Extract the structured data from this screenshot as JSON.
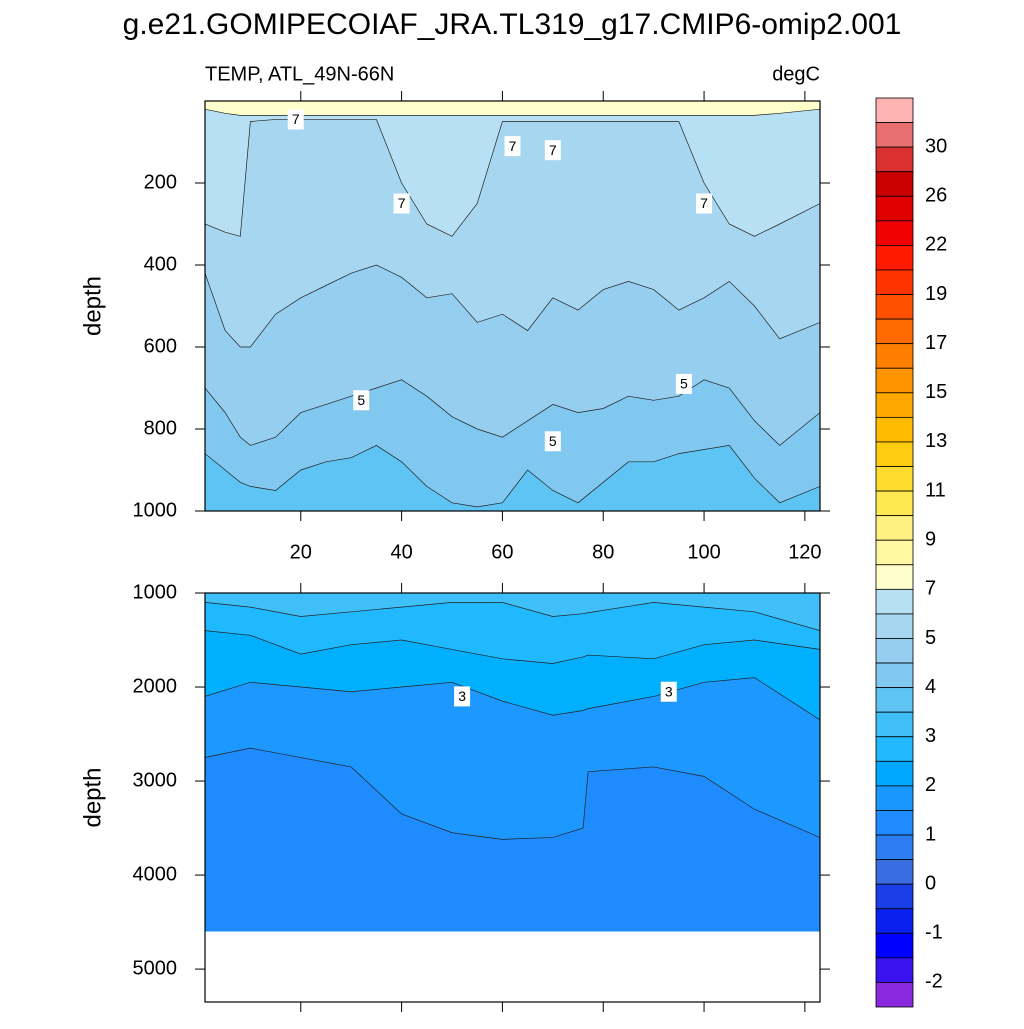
{
  "title": "g.e21.GOMIPECOIAF_JRA.TL319_g17.CMIP6-omip2.001",
  "chart_data": [
    {
      "type": "contour",
      "subtitle_left": "TEMP, ATL_49N-66N",
      "subtitle_right": "degC",
      "ylabel": "depth",
      "x": [
        1,
        5,
        8,
        10,
        15,
        20,
        25,
        30,
        35,
        40,
        45,
        50,
        55,
        60,
        65,
        70,
        75,
        80,
        85,
        90,
        95,
        100,
        105,
        110,
        115,
        123
      ],
      "xlim": [
        1,
        123
      ],
      "ylim": [
        0,
        1000
      ],
      "xticks": [
        20,
        40,
        60,
        80,
        100,
        120
      ],
      "yticks": [
        200,
        400,
        600,
        800,
        1000
      ],
      "show_xtick_labels": true,
      "background": "#ffffcc",
      "contours": [
        {
          "color": "#b8e0f4",
          "depths": [
            20,
            30,
            35,
            35,
            35,
            35,
            35,
            35,
            35,
            35,
            35,
            35,
            35,
            35,
            35,
            35,
            35,
            35,
            35,
            35,
            35,
            35,
            35,
            35,
            30,
            20
          ]
        },
        {
          "color": "#a6d6f0",
          "depths": [
            300,
            320,
            330,
            50,
            45,
            45,
            45,
            45,
            45,
            200,
            300,
            330,
            250,
            50,
            50,
            50,
            50,
            50,
            50,
            50,
            50,
            200,
            300,
            330,
            300,
            250
          ]
        },
        {
          "color": "#96cef0",
          "depths": [
            420,
            560,
            600,
            600,
            520,
            480,
            450,
            420,
            400,
            430,
            480,
            470,
            540,
            520,
            560,
            480,
            510,
            460,
            440,
            460,
            510,
            480,
            440,
            500,
            580,
            540
          ]
        },
        {
          "color": "#80c8f0",
          "depths": [
            700,
            760,
            820,
            840,
            820,
            760,
            740,
            720,
            700,
            680,
            720,
            770,
            800,
            820,
            780,
            740,
            760,
            750,
            720,
            730,
            720,
            680,
            700,
            780,
            840,
            760
          ]
        },
        {
          "color": "#5ec4f4",
          "depths": [
            860,
            900,
            930,
            940,
            950,
            900,
            880,
            870,
            840,
            880,
            940,
            980,
            990,
            980,
            900,
            950,
            980,
            930,
            880,
            880,
            860,
            850,
            840,
            920,
            980,
            940
          ]
        }
      ],
      "contour_labels": [
        {
          "x": 19,
          "depth": 45,
          "value": 7
        },
        {
          "x": 62,
          "depth": 110,
          "value": 7
        },
        {
          "x": 70,
          "depth": 120,
          "value": 7
        },
        {
          "x": 40,
          "depth": 250,
          "value": 7
        },
        {
          "x": 100,
          "depth": 250,
          "value": 7
        },
        {
          "x": 32,
          "depth": 730,
          "value": 5
        },
        {
          "x": 70,
          "depth": 830,
          "value": 5
        },
        {
          "x": 96,
          "depth": 690,
          "value": 5
        }
      ]
    },
    {
      "type": "contour",
      "ylabel": "depth",
      "x": [
        1,
        10,
        20,
        30,
        40,
        50,
        60,
        70,
        76,
        77,
        90,
        100,
        110,
        123
      ],
      "xlim": [
        1,
        123
      ],
      "ylim": [
        1000,
        5350
      ],
      "xticks": [
        20,
        40,
        60,
        80,
        100,
        120
      ],
      "yticks": [
        1000,
        2000,
        3000,
        4000,
        5000
      ],
      "show_xtick_labels": false,
      "background": "#40c0f8",
      "bottom_depth": 4600,
      "contours": [
        {
          "color": "#20b8ff",
          "depths": [
            1100,
            1150,
            1250,
            1200,
            1150,
            1100,
            1100,
            1250,
            1220,
            1210,
            1100,
            1150,
            1200,
            1400
          ]
        },
        {
          "color": "#00b0ff",
          "depths": [
            1400,
            1450,
            1650,
            1550,
            1500,
            1600,
            1700,
            1750,
            1680,
            1660,
            1700,
            1550,
            1500,
            1600
          ]
        },
        {
          "color": "#1c98ff",
          "depths": [
            2100,
            1950,
            2000,
            2050,
            2000,
            1950,
            2150,
            2300,
            2250,
            2230,
            2100,
            1950,
            1900,
            2350
          ]
        },
        {
          "color": "#1e8cff",
          "depths": [
            2750,
            2650,
            2750,
            2850,
            3350,
            3550,
            3620,
            3600,
            3500,
            2900,
            2850,
            2950,
            3300,
            3600
          ]
        }
      ],
      "contour_labels": [
        {
          "x": 52,
          "depth": 2100,
          "value": 3
        },
        {
          "x": 93,
          "depth": 2050,
          "value": 3
        }
      ]
    }
  ],
  "colorbar": {
    "colors": [
      "#ffb3b3",
      "#e87070",
      "#d93030",
      "#c80000",
      "#e00000",
      "#f00000",
      "#ff1a00",
      "#ff3300",
      "#ff5000",
      "#ff6a00",
      "#ff7f00",
      "#ff9400",
      "#ffa800",
      "#ffbb00",
      "#ffcc10",
      "#ffdd30",
      "#ffe850",
      "#fff080",
      "#fff8a0",
      "#ffffcc",
      "#b8e0f4",
      "#a6d6f0",
      "#96cef0",
      "#80c8f0",
      "#5ec4f4",
      "#40c0f8",
      "#20b8ff",
      "#00a8ff",
      "#1898ff",
      "#1e8cff",
      "#2a7ef0",
      "#3a6ee0",
      "#1a3ee8",
      "#0a20f0",
      "#0000ff",
      "#3a14f0",
      "#8a28e0"
    ],
    "labels": [
      30,
      26,
      22,
      19,
      17,
      15,
      13,
      11,
      9,
      7,
      5,
      4,
      3,
      2,
      1,
      0,
      -1,
      -2
    ]
  }
}
